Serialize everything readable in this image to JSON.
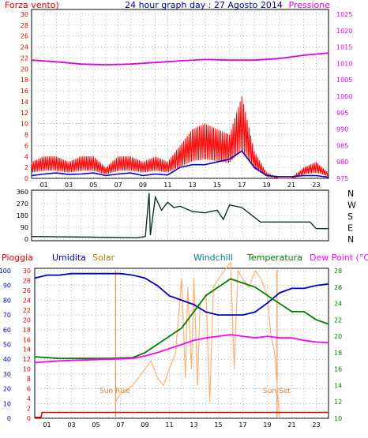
{
  "header": {
    "left": "Forza vento)",
    "center": "24 hour graph day : 27 Agosto 2014",
    "right": "Pressione"
  },
  "colors": {
    "wind_axis": "#e00000",
    "pressure_axis": "#e000e0",
    "wind": "#ff0000",
    "gust": "#ff0000",
    "avg": "#0000d0",
    "pressure": "#e000e0",
    "dir_line": "#103030",
    "rain": "#e00000",
    "humidity": "#0000c0",
    "solar": "#ffb070",
    "windchill": "#008000",
    "temp": "#008000",
    "dewpoint": "#ff00ff",
    "grid": "#8a8a8a",
    "title": "#0000a0"
  },
  "chart_data": [
    {
      "type": "line",
      "name": "wind-pressure",
      "x_ticks": [
        "01",
        "03",
        "05",
        "07",
        "09",
        "11",
        "13",
        "15",
        "17",
        "19",
        "21",
        "23"
      ],
      "y_left_ticks": [
        0,
        2,
        4,
        6,
        8,
        10,
        12,
        14,
        16,
        18,
        20,
        22,
        24,
        26,
        28,
        30
      ],
      "y_right_ticks": [
        975,
        980,
        985,
        990,
        995,
        1000,
        1005,
        1010,
        1015,
        1020,
        1025
      ],
      "pressure_x": [
        0,
        2,
        4,
        6,
        8,
        10,
        12,
        14,
        16,
        18,
        20,
        22,
        24
      ],
      "pressure_y": [
        1011,
        1010.5,
        1009.8,
        1009.6,
        1009.8,
        1010.3,
        1010.8,
        1011.2,
        1011.0,
        1011.0,
        1011.5,
        1012.5,
        1013.2
      ],
      "avg_x": [
        0,
        1,
        2,
        3,
        4,
        5,
        6,
        7,
        8,
        9,
        10,
        11,
        12,
        13,
        14,
        15,
        16,
        17,
        18,
        19,
        20,
        21,
        22,
        23,
        24
      ],
      "avg_y": [
        0.5,
        0.8,
        1.0,
        0.7,
        0.8,
        1.0,
        0.5,
        0.8,
        1.0,
        0.5,
        0.8,
        0.6,
        2.0,
        2.5,
        2.5,
        3.0,
        3.5,
        5.0,
        2.0,
        0.5,
        0.3,
        0.3,
        0.5,
        0.5,
        0.2
      ],
      "gust_x": [
        0,
        1,
        2,
        3,
        4,
        5,
        6,
        7,
        8,
        9,
        10,
        11,
        12,
        13,
        14,
        15,
        16,
        17,
        18,
        19,
        20,
        21,
        22,
        23,
        24
      ],
      "gust_y": [
        3,
        4,
        4,
        3,
        4,
        4,
        2,
        4,
        4,
        3,
        4,
        3,
        6,
        9,
        10,
        9,
        8,
        15,
        5,
        1,
        0,
        0,
        2,
        3,
        1
      ]
    },
    {
      "type": "line",
      "name": "wind-direction",
      "y_ticks": [
        0,
        90,
        180,
        270,
        360
      ],
      "right_labels": [
        "N",
        "W",
        "S",
        "E",
        "N"
      ],
      "dir_x": [
        0,
        5,
        8.5,
        9.2,
        9.5,
        9.6,
        10.0,
        10.5,
        11.0,
        11.5,
        12.0,
        13.0,
        14.0,
        15.0,
        15.5,
        16.0,
        17.0,
        18.5,
        19.5,
        22.5,
        23.0,
        24.0
      ],
      "dir_y": [
        20,
        15,
        10,
        20,
        350,
        30,
        320,
        220,
        280,
        240,
        250,
        210,
        200,
        220,
        150,
        260,
        240,
        130,
        130,
        130,
        80,
        80
      ]
    },
    {
      "type": "line",
      "name": "temp-humidity",
      "legend": [
        "Pioggia",
        "Umidita",
        "Solar",
        "Windchill",
        "Temperatura",
        "Dew Point (°C)"
      ],
      "x_ticks": [
        "01",
        "03",
        "05",
        "07",
        "09",
        "11",
        "13",
        "15",
        "17",
        "19",
        "21",
        "23"
      ],
      "y_left_ticks": [
        0,
        10,
        20,
        30,
        40,
        50,
        60,
        70,
        80,
        90,
        100
      ],
      "y_left2_ticks": [
        0,
        2,
        4,
        6,
        8,
        10,
        12,
        14,
        16,
        18,
        20,
        22,
        24,
        26,
        28,
        30
      ],
      "y_right_ticks": [
        10,
        12,
        14,
        16,
        18,
        20,
        22,
        24,
        26,
        28
      ],
      "annotations": [
        "Sun Rise",
        "Sun Set"
      ],
      "rain_x": [
        0,
        0.5,
        0.6,
        24
      ],
      "rain_y": [
        0.2,
        0.2,
        1.2,
        1.2
      ],
      "humidity_x": [
        0,
        1,
        2,
        3,
        4,
        5,
        6,
        7,
        8,
        9,
        10,
        11,
        12,
        13,
        14,
        15,
        16,
        17,
        18,
        19,
        20,
        21,
        22,
        23,
        24
      ],
      "humidity_y": [
        95,
        97,
        97,
        98,
        98,
        98,
        98,
        98,
        97,
        95,
        90,
        83,
        80,
        77,
        72,
        70,
        70,
        70,
        72,
        78,
        85,
        88,
        88,
        90,
        91
      ],
      "temp_x": [
        0,
        2,
        4,
        6,
        8,
        9,
        10,
        11,
        12,
        13,
        14,
        15,
        16,
        17,
        18,
        19,
        20,
        21,
        22,
        23,
        24
      ],
      "temp_y": [
        17.5,
        17.3,
        17.3,
        17.3,
        17.4,
        18,
        19,
        20,
        21,
        23,
        25,
        26,
        27,
        26.5,
        26,
        25,
        24,
        23,
        23,
        22,
        21.5
      ],
      "dew_x": [
        0,
        2,
        4,
        6,
        8,
        9,
        10,
        11,
        12,
        13,
        14,
        15,
        16,
        17,
        18,
        19,
        20,
        21,
        22,
        23,
        24
      ],
      "dew_y": [
        16.8,
        17.0,
        17.1,
        17.2,
        17.3,
        17.6,
        18,
        18.5,
        19,
        19.5,
        19.8,
        20,
        20.2,
        20,
        19.8,
        20,
        19.8,
        19.8,
        19.5,
        19.3,
        19.2
      ],
      "solar_x": [
        6.6,
        7,
        7.5,
        8,
        8.5,
        9,
        9.5,
        10,
        10.5,
        11,
        11.5,
        12,
        12.3,
        12.5,
        12.8,
        13,
        13.3,
        13.5,
        14,
        14.3,
        14.6,
        15,
        15.5,
        16,
        16.3,
        16.6,
        17,
        17.5,
        18,
        18.5,
        19,
        19.3,
        19.6,
        20
      ],
      "solar_y": [
        12,
        13,
        13.5,
        14,
        15,
        16,
        17,
        15,
        14,
        16,
        18,
        27,
        15,
        26,
        16,
        27,
        14,
        24,
        25,
        12,
        26,
        27,
        28,
        29,
        16,
        28,
        27,
        26,
        28,
        27,
        25,
        20,
        18,
        10
      ]
    }
  ]
}
